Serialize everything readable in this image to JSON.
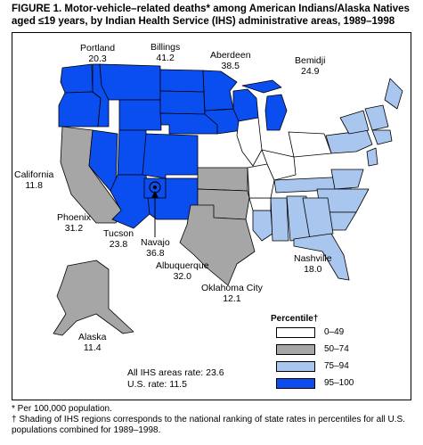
{
  "figure": {
    "title": "FIGURE 1. Motor-vehicle–related deaths* among American Indians/Alaska Natives aged ≤19 years, by Indian Health Service (IHS) administrative areas, 1989–1998"
  },
  "legend": {
    "title": "Percentile†",
    "items": [
      {
        "label": "0–49",
        "color": "#ffffff"
      },
      {
        "label": "50–74",
        "color": "#a6a6a6"
      },
      {
        "label": "75–94",
        "color": "#a9c6ee"
      },
      {
        "label": "95–100",
        "color": "#0a4ef0"
      }
    ]
  },
  "areas": [
    {
      "name": "Portland",
      "rate": "20.3",
      "category": "95–100"
    },
    {
      "name": "Billings",
      "rate": "41.2",
      "category": "95–100"
    },
    {
      "name": "Aberdeen",
      "rate": "38.5",
      "category": "95–100"
    },
    {
      "name": "Bemidji",
      "rate": "24.9",
      "category": "95–100"
    },
    {
      "name": "California",
      "rate": "11.8",
      "category": "50–74"
    },
    {
      "name": "Phoenix",
      "rate": "31.2",
      "category": "95–100"
    },
    {
      "name": "Tucson",
      "rate": "23.8",
      "category": "95–100"
    },
    {
      "name": "Navajo",
      "rate": "36.8",
      "category": "95–100"
    },
    {
      "name": "Albuquerque",
      "rate": "32.0",
      "category": "95–100"
    },
    {
      "name": "Oklahoma City",
      "rate": "12.1",
      "category": "50–74"
    },
    {
      "name": "Nashville",
      "rate": "18.0",
      "category": "75–94"
    },
    {
      "name": "Alaska",
      "rate": "11.4",
      "category": "50–74"
    }
  ],
  "rates": {
    "all_ihs": "All IHS areas rate: 23.6",
    "us": "U.S. rate: 11.5"
  },
  "footnotes": {
    "star": "* Per 100,000 population.",
    "dagger": "† Shading of IHS regions corresponds to the national ranking of state rates in percentiles for all U.S. populations combined for 1989–1998."
  }
}
